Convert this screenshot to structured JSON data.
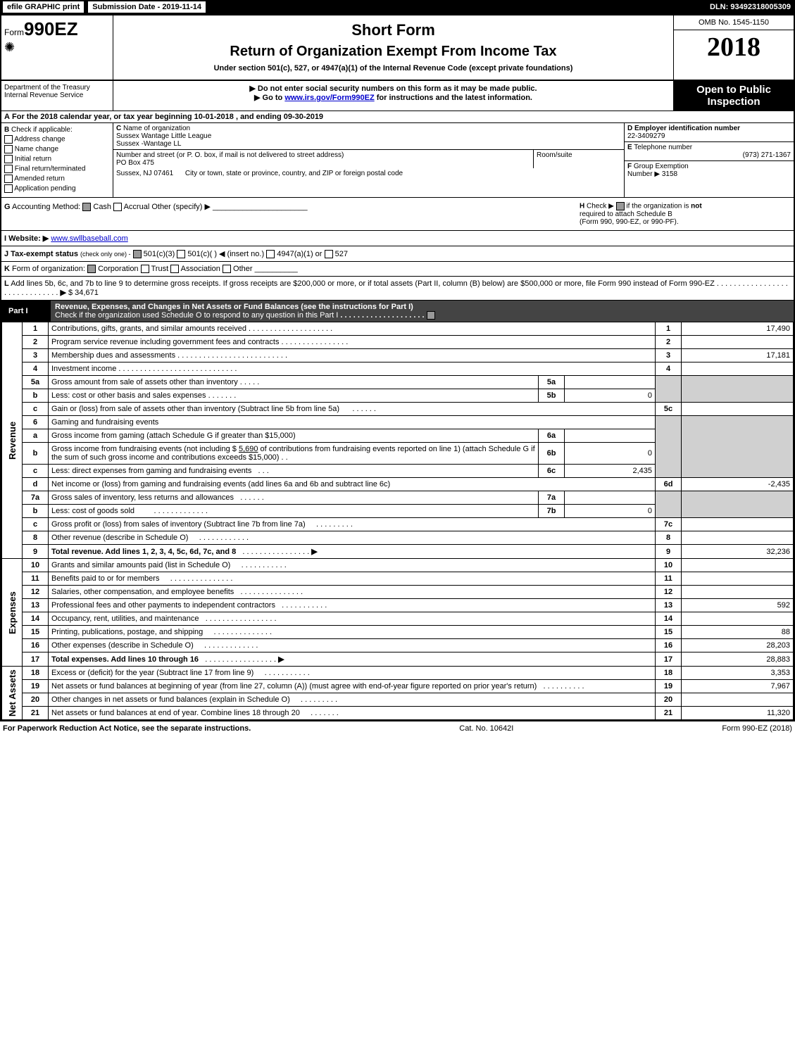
{
  "top_bar": {
    "efile": "efile GRAPHIC print",
    "submission": "Submission Date - 2019-11-14",
    "dln": "DLN: 93492318005309"
  },
  "header": {
    "form_prefix": "Form",
    "form_no": "990EZ",
    "short_form": "Short Form",
    "return_title": "Return of Organization Exempt From Income Tax",
    "under_section": "Under section 501(c), 527, or 4947(a)(1) of the Internal Revenue Code (except private foundations)",
    "omb": "OMB No. 1545-1150",
    "year": "2018",
    "dept_label": "Department of the Treasury",
    "irs_label": "Internal Revenue Service",
    "no_ssn": "▶ Do not enter social security numbers on this form as it may be made public.",
    "goto": "▶ Go to ",
    "goto_link": "www.irs.gov/Form990EZ",
    "goto_suffix": " for instructions and the latest information.",
    "open_public_1": "Open to Public",
    "open_public_2": "Inspection"
  },
  "line_a": {
    "prefix": "A",
    "text": "For the 2018 calendar year, or tax year beginning 10-01-2018",
    "ending": ", and ending 09-30-2019"
  },
  "col_b": {
    "label": "B",
    "check_if": "Check if applicable:",
    "addr_change": "Address change",
    "name_change": "Name change",
    "initial_return": "Initial return",
    "final_return": "Final return/terminated",
    "amended": "Amended return",
    "app_pending": "Application pending"
  },
  "col_c": {
    "label": "C",
    "name_label": "Name of organization",
    "org_name": "Sussex Wantage Little League",
    "org_name2": "Sussex -Wantage LL",
    "street_label": "Number and street (or P. O. box, if mail is not delivered to street address)",
    "street": "PO Box 475",
    "room_label": "Room/suite",
    "city_label": "City or town, state or province, country, and ZIP or foreign postal code",
    "city": "Sussex, NJ  07461"
  },
  "col_de": {
    "d_label": "D",
    "d_text": "Employer identification number",
    "d_value": "22-3409279",
    "e_label": "E",
    "e_text": "Telephone number",
    "e_value": "(973) 271-1367",
    "f_label": "F",
    "f_text": "Group Exemption",
    "f_number_label": "Number ▶",
    "f_value": "3158"
  },
  "row_g": {
    "label": "G",
    "text": "Accounting Method:",
    "cash": "Cash",
    "accrual": "Accrual",
    "other": "Other (specify) ▶",
    "h_label": "H",
    "h_text1": "Check ▶",
    "h_text2": "if the organization is ",
    "h_not": "not",
    "h_text3": "required to attach Schedule B",
    "h_text4": "(Form 990, 990-EZ, or 990-PF)."
  },
  "row_i": {
    "label": "I Website: ▶",
    "value": "www.swllbaseball.com"
  },
  "row_j": {
    "label": "J Tax-exempt status",
    "suffix": "(check only one) -",
    "opt1": "501(c)(3)",
    "opt2": "501(c)(  ) ◀ (insert no.)",
    "opt3": "4947(a)(1) or",
    "opt4": "527"
  },
  "row_k": {
    "label": "K",
    "text": "Form of organization:",
    "corp": "Corporation",
    "trust": "Trust",
    "assoc": "Association",
    "other": "Other"
  },
  "row_l": {
    "label": "L",
    "text": "Add lines 5b, 6c, and 7b to line 9 to determine gross receipts. If gross receipts are $200,000 or more, or if total assets (Part II, column (B) below) are $500,000 or more, file Form 990 instead of Form 990-EZ",
    "arrow": "▶",
    "amount": "$ 34,671"
  },
  "part1": {
    "label": "Part I",
    "title": "Revenue, Expenses, and Changes in Net Assets or Fund Balances (see the instructions for Part I)",
    "check_text": "Check if the organization used Schedule O to respond to any question in this Part I"
  },
  "sections": {
    "revenue": "Revenue",
    "expenses": "Expenses",
    "netassets": "Net Assets"
  },
  "lines": {
    "1": {
      "desc": "Contributions, gifts, grants, and similar amounts received",
      "num": "1",
      "amount": "17,490"
    },
    "2": {
      "desc": "Program service revenue including government fees and contracts",
      "num": "2",
      "amount": ""
    },
    "3": {
      "desc": "Membership dues and assessments",
      "num": "3",
      "amount": "17,181"
    },
    "4": {
      "desc": "Investment income",
      "num": "4",
      "amount": ""
    },
    "5a": {
      "desc": "Gross amount from sale of assets other than inventory",
      "mid": "5a",
      "midval": ""
    },
    "5b": {
      "desc": "Less: cost or other basis and sales expenses",
      "mid": "5b",
      "midval": "0"
    },
    "5c": {
      "desc": "Gain or (loss) from sale of assets other than inventory (Subtract line 5b from line 5a)",
      "num": "5c",
      "amount": ""
    },
    "6": {
      "desc": "Gaming and fundraising events"
    },
    "6a": {
      "desc": "Gross income from gaming (attach Schedule G if greater than $15,000)",
      "mid": "6a",
      "midval": ""
    },
    "6b_pre": "Gross income from fundraising events (not including $ ",
    "6b_ins": "5,690",
    "6b_post": " of contributions from fundraising events reported on line 1) (attach Schedule G if the sum of such gross income and contributions exceeds $15,000)",
    "6b": {
      "mid": "6b",
      "midval": "0"
    },
    "6c": {
      "desc": "Less: direct expenses from gaming and fundraising events",
      "mid": "6c",
      "midval": "2,435"
    },
    "6d": {
      "desc": "Net income or (loss) from gaming and fundraising events (add lines 6a and 6b and subtract line 6c)",
      "num": "6d",
      "amount": "-2,435"
    },
    "7a": {
      "desc": "Gross sales of inventory, less returns and allowances",
      "mid": "7a",
      "midval": ""
    },
    "7b": {
      "desc": "Less: cost of goods sold",
      "mid": "7b",
      "midval": "0"
    },
    "7c": {
      "desc": "Gross profit or (loss) from sales of inventory (Subtract line 7b from line 7a)",
      "num": "7c",
      "amount": ""
    },
    "8": {
      "desc": "Other revenue (describe in Schedule O)",
      "num": "8",
      "amount": ""
    },
    "9": {
      "desc": "Total revenue. Add lines 1, 2, 3, 4, 5c, 6d, 7c, and 8",
      "arrow": "▶",
      "num": "9",
      "amount": "32,236"
    },
    "10": {
      "desc": "Grants and similar amounts paid (list in Schedule O)",
      "num": "10",
      "amount": ""
    },
    "11": {
      "desc": "Benefits paid to or for members",
      "num": "11",
      "amount": ""
    },
    "12": {
      "desc": "Salaries, other compensation, and employee benefits",
      "num": "12",
      "amount": ""
    },
    "13": {
      "desc": "Professional fees and other payments to independent contractors",
      "num": "13",
      "amount": "592"
    },
    "14": {
      "desc": "Occupancy, rent, utilities, and maintenance",
      "num": "14",
      "amount": ""
    },
    "15": {
      "desc": "Printing, publications, postage, and shipping",
      "num": "15",
      "amount": "88"
    },
    "16": {
      "desc": "Other expenses (describe in Schedule O)",
      "num": "16",
      "amount": "28,203"
    },
    "17": {
      "desc": "Total expenses. Add lines 10 through 16",
      "arrow": "▶",
      "num": "17",
      "amount": "28,883"
    },
    "18": {
      "desc": "Excess or (deficit) for the year (Subtract line 17 from line 9)",
      "num": "18",
      "amount": "3,353"
    },
    "19": {
      "desc": "Net assets or fund balances at beginning of year (from line 27, column (A)) (must agree with end-of-year figure reported on prior year's return)",
      "num": "19",
      "amount": "7,967"
    },
    "20": {
      "desc": "Other changes in net assets or fund balances (explain in Schedule O)",
      "num": "20",
      "amount": ""
    },
    "21": {
      "desc": "Net assets or fund balances at end of year. Combine lines 18 through 20",
      "num": "21",
      "amount": "11,320"
    }
  },
  "footer": {
    "left": "For Paperwork Reduction Act Notice, see the separate instructions.",
    "mid": "Cat. No. 10642I",
    "right": "Form 990-EZ (2018)"
  },
  "colors": {
    "black": "#000000",
    "white": "#ffffff",
    "gray": "#d0d0d0",
    "dark_gray_header": "#444444",
    "link": "#0000cc"
  }
}
